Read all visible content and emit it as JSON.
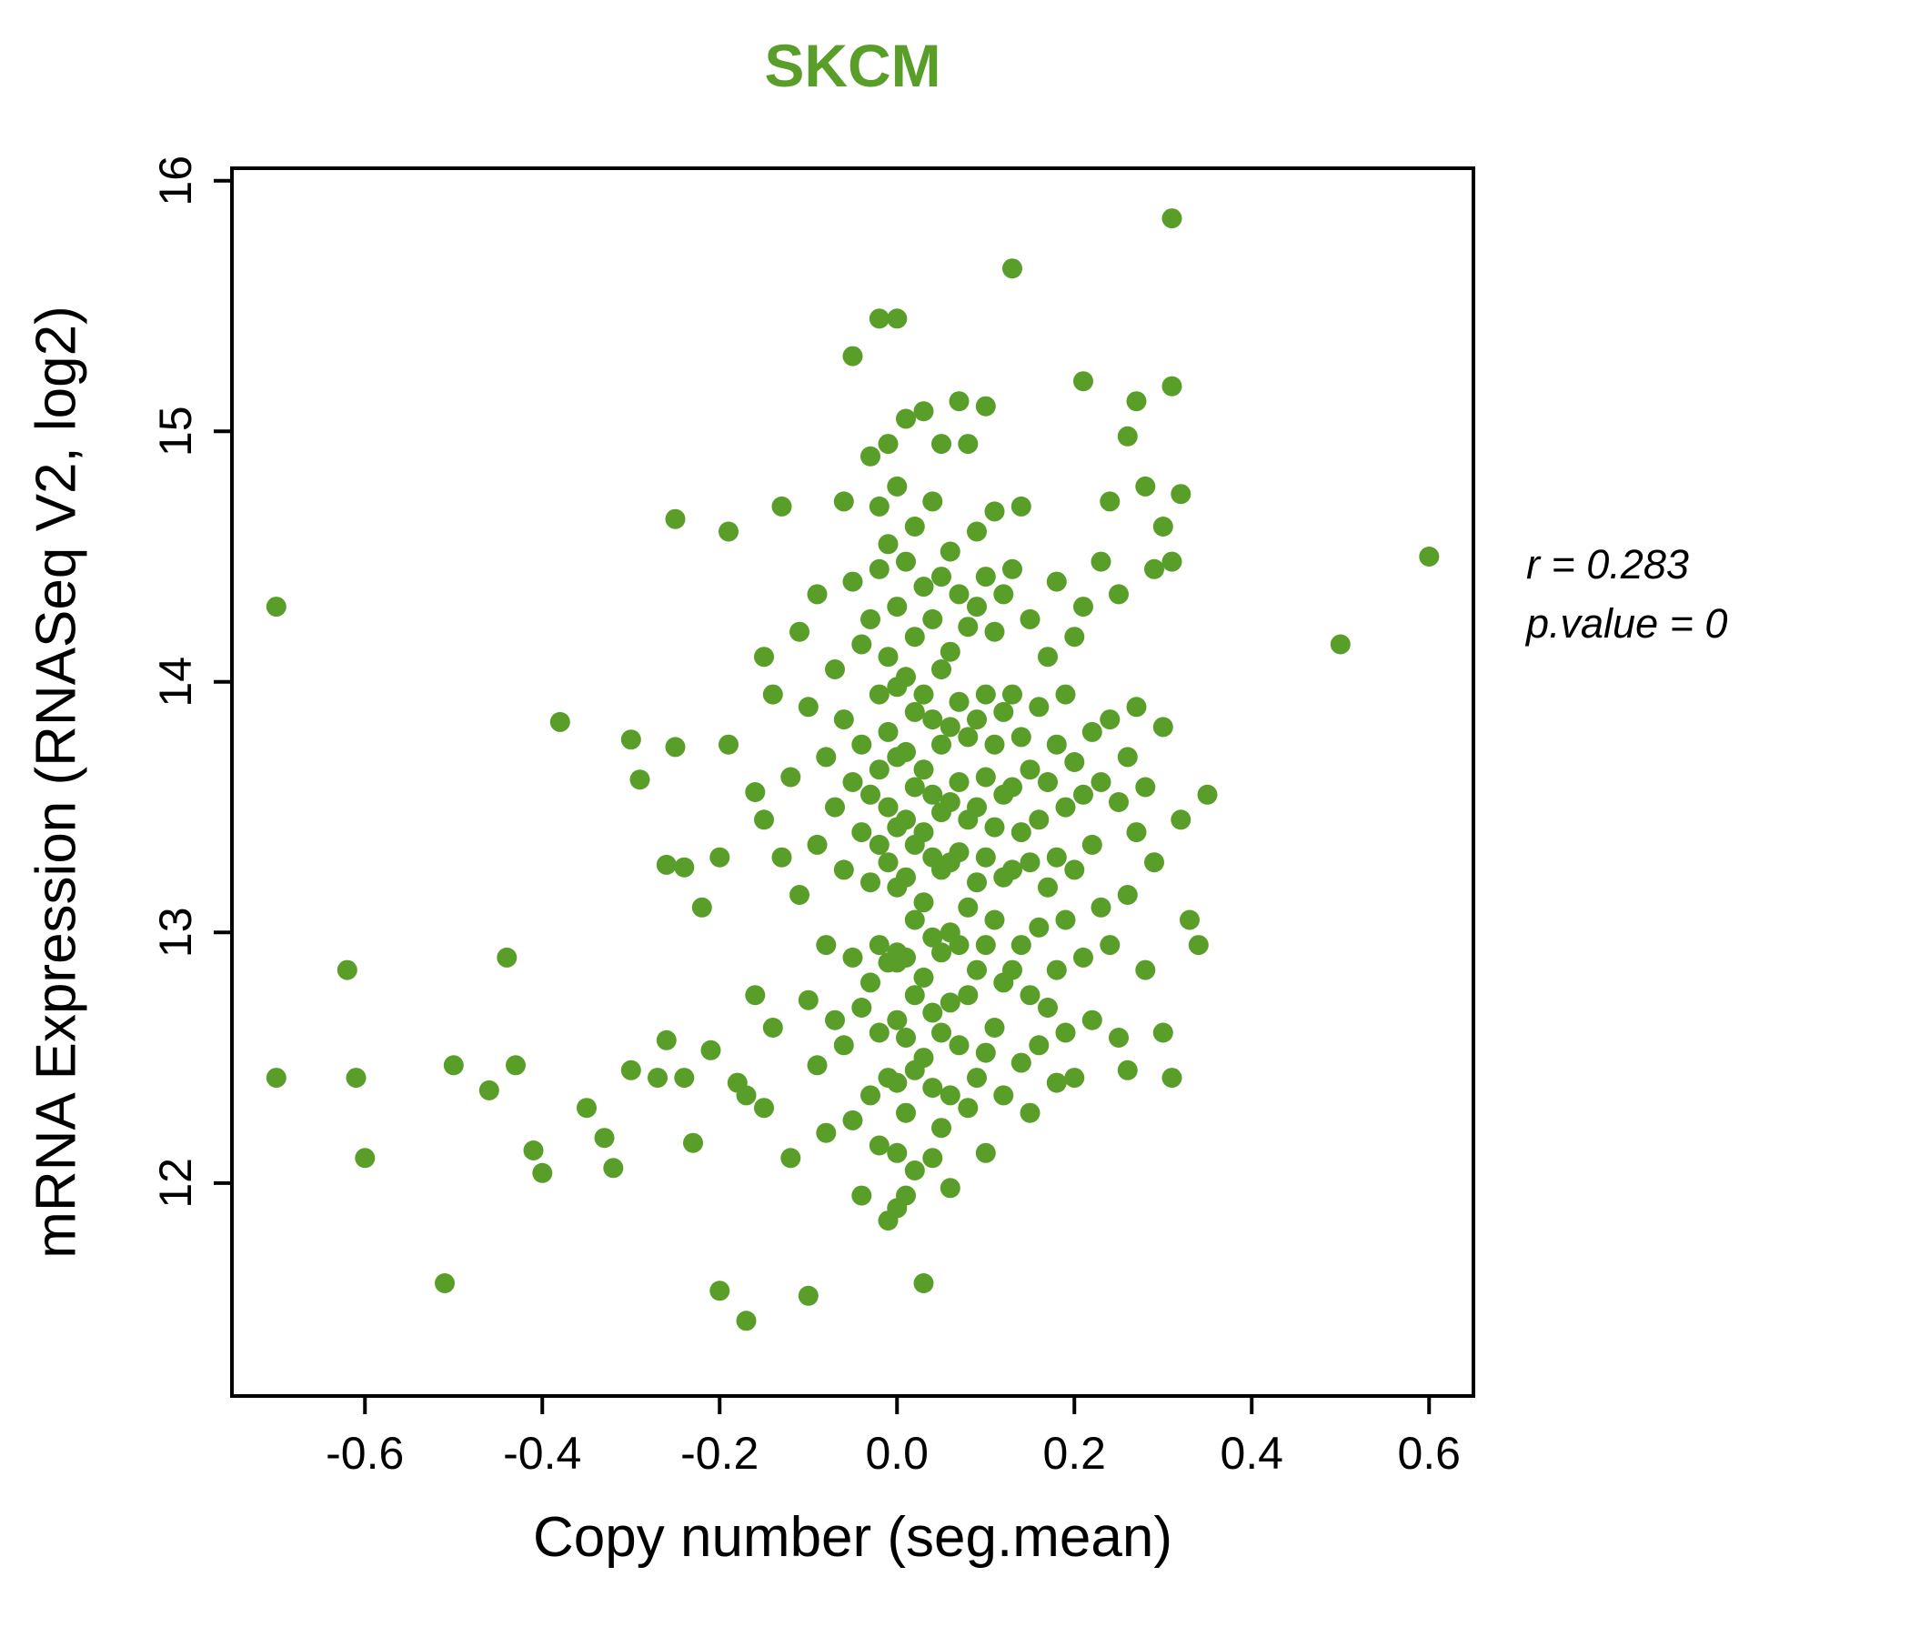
{
  "title": "SKCM",
  "title_color": "#5a9e2a",
  "point_color": "#5a9e2a",
  "axis_color": "#000000",
  "annotation": {
    "line1": "r = 0.283",
    "line2": "p.value = 0"
  },
  "chart_data": {
    "type": "scatter",
    "title": "SKCM",
    "xlabel": "Copy number (seg.mean)",
    "ylabel": "mRNA Expression (RNASeq V2, log2)",
    "xlim": [
      -0.75,
      0.65
    ],
    "ylim": [
      11.15,
      16.05
    ],
    "x_ticks": [
      -0.6,
      -0.4,
      -0.2,
      0.0,
      0.2,
      0.4,
      0.6
    ],
    "x_tick_labels": [
      "-0.6",
      "-0.4",
      "-0.2",
      "0.0",
      "0.2",
      "0.4",
      "0.6"
    ],
    "y_ticks": [
      12,
      13,
      14,
      15,
      16
    ],
    "y_tick_labels": [
      "12",
      "13",
      "14",
      "15",
      "16"
    ],
    "grid": false,
    "legend": "none",
    "annotations": [
      "r = 0.283",
      "p.value = 0"
    ],
    "points": [
      [
        -0.7,
        14.3
      ],
      [
        -0.7,
        12.42
      ],
      [
        -0.62,
        12.85
      ],
      [
        -0.61,
        12.42
      ],
      [
        -0.6,
        12.1
      ],
      [
        -0.51,
        11.6
      ],
      [
        -0.5,
        12.47
      ],
      [
        -0.46,
        12.37
      ],
      [
        -0.44,
        12.9
      ],
      [
        -0.43,
        12.47
      ],
      [
        -0.41,
        12.13
      ],
      [
        -0.4,
        12.04
      ],
      [
        -0.38,
        13.84
      ],
      [
        -0.35,
        12.3
      ],
      [
        -0.33,
        12.18
      ],
      [
        -0.32,
        12.06
      ],
      [
        -0.3,
        13.77
      ],
      [
        -0.3,
        12.45
      ],
      [
        -0.29,
        13.61
      ],
      [
        -0.27,
        12.42
      ],
      [
        -0.26,
        13.27
      ],
      [
        -0.26,
        12.57
      ],
      [
        -0.25,
        14.65
      ],
      [
        -0.25,
        13.74
      ],
      [
        -0.24,
        13.26
      ],
      [
        -0.24,
        12.42
      ],
      [
        -0.23,
        12.16
      ],
      [
        -0.22,
        13.1
      ],
      [
        -0.21,
        12.53
      ],
      [
        -0.2,
        11.57
      ],
      [
        -0.2,
        13.3
      ],
      [
        -0.19,
        14.6
      ],
      [
        -0.19,
        13.75
      ],
      [
        -0.18,
        12.4
      ],
      [
        -0.17,
        11.45
      ],
      [
        -0.17,
        12.35
      ],
      [
        -0.16,
        13.56
      ],
      [
        -0.16,
        12.75
      ],
      [
        -0.15,
        14.1
      ],
      [
        -0.15,
        13.45
      ],
      [
        -0.15,
        12.3
      ],
      [
        -0.14,
        13.95
      ],
      [
        -0.14,
        12.62
      ],
      [
        -0.13,
        14.7
      ],
      [
        -0.13,
        13.3
      ],
      [
        -0.12,
        12.1
      ],
      [
        -0.12,
        13.62
      ],
      [
        -0.11,
        14.2
      ],
      [
        -0.11,
        13.15
      ],
      [
        -0.1,
        11.55
      ],
      [
        -0.1,
        12.73
      ],
      [
        -0.1,
        13.9
      ],
      [
        -0.09,
        14.35
      ],
      [
        -0.09,
        13.35
      ],
      [
        -0.09,
        12.47
      ],
      [
        -0.08,
        13.7
      ],
      [
        -0.08,
        12.95
      ],
      [
        -0.08,
        12.2
      ],
      [
        -0.07,
        14.05
      ],
      [
        -0.07,
        13.5
      ],
      [
        -0.07,
        12.65
      ],
      [
        -0.06,
        14.72
      ],
      [
        -0.06,
        13.85
      ],
      [
        -0.06,
        13.25
      ],
      [
        -0.06,
        12.55
      ],
      [
        -0.05,
        15.3
      ],
      [
        -0.05,
        14.4
      ],
      [
        -0.05,
        13.6
      ],
      [
        -0.05,
        12.9
      ],
      [
        -0.05,
        12.25
      ],
      [
        -0.04,
        14.15
      ],
      [
        -0.04,
        13.75
      ],
      [
        -0.04,
        13.4
      ],
      [
        -0.04,
        12.7
      ],
      [
        -0.04,
        11.95
      ],
      [
        -0.03,
        14.9
      ],
      [
        -0.03,
        14.25
      ],
      [
        -0.03,
        13.55
      ],
      [
        -0.03,
        13.2
      ],
      [
        -0.03,
        12.8
      ],
      [
        -0.03,
        12.35
      ],
      [
        -0.02,
        15.45
      ],
      [
        -0.02,
        14.7
      ],
      [
        -0.02,
        14.45
      ],
      [
        -0.02,
        13.95
      ],
      [
        -0.02,
        13.65
      ],
      [
        -0.02,
        13.35
      ],
      [
        -0.02,
        12.95
      ],
      [
        -0.02,
        12.6
      ],
      [
        -0.02,
        12.15
      ],
      [
        -0.01,
        14.95
      ],
      [
        -0.01,
        14.55
      ],
      [
        -0.01,
        14.1
      ],
      [
        -0.01,
        13.8
      ],
      [
        -0.01,
        13.5
      ],
      [
        -0.01,
        13.28
      ],
      [
        -0.01,
        12.88
      ],
      [
        -0.01,
        12.42
      ],
      [
        -0.01,
        11.85
      ],
      [
        0.0,
        15.45
      ],
      [
        0.0,
        14.78
      ],
      [
        0.0,
        14.3
      ],
      [
        0.0,
        13.98
      ],
      [
        0.0,
        13.7
      ],
      [
        0.0,
        13.42
      ],
      [
        0.0,
        13.18
      ],
      [
        0.0,
        12.92
      ],
      [
        0.0,
        12.88
      ],
      [
        0.0,
        12.65
      ],
      [
        0.0,
        12.4
      ],
      [
        0.0,
        12.12
      ],
      [
        0.0,
        11.9
      ],
      [
        0.01,
        15.05
      ],
      [
        0.01,
        14.48
      ],
      [
        0.01,
        14.02
      ],
      [
        0.01,
        13.72
      ],
      [
        0.01,
        13.45
      ],
      [
        0.01,
        13.22
      ],
      [
        0.01,
        12.9
      ],
      [
        0.01,
        12.58
      ],
      [
        0.01,
        12.28
      ],
      [
        0.01,
        11.95
      ],
      [
        0.02,
        14.62
      ],
      [
        0.02,
        14.18
      ],
      [
        0.02,
        13.88
      ],
      [
        0.02,
        13.58
      ],
      [
        0.02,
        13.35
      ],
      [
        0.02,
        13.05
      ],
      [
        0.02,
        12.75
      ],
      [
        0.02,
        12.45
      ],
      [
        0.02,
        12.05
      ],
      [
        0.03,
        15.08
      ],
      [
        0.03,
        14.38
      ],
      [
        0.03,
        13.95
      ],
      [
        0.03,
        13.65
      ],
      [
        0.03,
        13.4
      ],
      [
        0.03,
        13.12
      ],
      [
        0.03,
        12.82
      ],
      [
        0.03,
        12.5
      ],
      [
        0.03,
        11.6
      ],
      [
        0.04,
        14.72
      ],
      [
        0.04,
        14.25
      ],
      [
        0.04,
        13.85
      ],
      [
        0.04,
        13.55
      ],
      [
        0.04,
        13.3
      ],
      [
        0.04,
        12.98
      ],
      [
        0.04,
        12.68
      ],
      [
        0.04,
        12.38
      ],
      [
        0.04,
        12.1
      ],
      [
        0.05,
        14.95
      ],
      [
        0.05,
        14.42
      ],
      [
        0.05,
        14.05
      ],
      [
        0.05,
        13.75
      ],
      [
        0.05,
        13.48
      ],
      [
        0.05,
        13.25
      ],
      [
        0.05,
        12.92
      ],
      [
        0.05,
        12.6
      ],
      [
        0.05,
        12.22
      ],
      [
        0.06,
        14.52
      ],
      [
        0.06,
        14.12
      ],
      [
        0.06,
        13.82
      ],
      [
        0.06,
        13.52
      ],
      [
        0.06,
        13.28
      ],
      [
        0.06,
        13.0
      ],
      [
        0.06,
        12.72
      ],
      [
        0.06,
        12.35
      ],
      [
        0.06,
        11.98
      ],
      [
        0.07,
        15.12
      ],
      [
        0.07,
        14.35
      ],
      [
        0.07,
        13.92
      ],
      [
        0.07,
        13.6
      ],
      [
        0.07,
        13.32
      ],
      [
        0.07,
        12.95
      ],
      [
        0.07,
        12.55
      ],
      [
        0.08,
        14.95
      ],
      [
        0.08,
        14.22
      ],
      [
        0.08,
        13.78
      ],
      [
        0.08,
        13.45
      ],
      [
        0.08,
        13.1
      ],
      [
        0.08,
        12.75
      ],
      [
        0.08,
        12.3
      ],
      [
        0.09,
        14.6
      ],
      [
        0.09,
        14.3
      ],
      [
        0.09,
        13.85
      ],
      [
        0.09,
        13.5
      ],
      [
        0.09,
        13.2
      ],
      [
        0.09,
        12.85
      ],
      [
        0.09,
        12.42
      ],
      [
        0.1,
        15.1
      ],
      [
        0.1,
        14.42
      ],
      [
        0.1,
        13.95
      ],
      [
        0.1,
        13.62
      ],
      [
        0.1,
        13.3
      ],
      [
        0.1,
        12.95
      ],
      [
        0.1,
        12.52
      ],
      [
        0.1,
        12.12
      ],
      [
        0.11,
        14.68
      ],
      [
        0.11,
        14.2
      ],
      [
        0.11,
        13.75
      ],
      [
        0.11,
        13.42
      ],
      [
        0.11,
        13.05
      ],
      [
        0.11,
        12.62
      ],
      [
        0.12,
        14.35
      ],
      [
        0.12,
        13.88
      ],
      [
        0.12,
        13.55
      ],
      [
        0.12,
        13.22
      ],
      [
        0.12,
        12.8
      ],
      [
        0.12,
        12.35
      ],
      [
        0.13,
        15.65
      ],
      [
        0.13,
        14.45
      ],
      [
        0.13,
        13.95
      ],
      [
        0.13,
        13.58
      ],
      [
        0.13,
        13.25
      ],
      [
        0.13,
        12.85
      ],
      [
        0.14,
        14.7
      ],
      [
        0.14,
        13.78
      ],
      [
        0.14,
        13.4
      ],
      [
        0.14,
        12.95
      ],
      [
        0.14,
        12.48
      ],
      [
        0.15,
        14.25
      ],
      [
        0.15,
        13.65
      ],
      [
        0.15,
        13.28
      ],
      [
        0.15,
        12.75
      ],
      [
        0.15,
        12.28
      ],
      [
        0.16,
        13.9
      ],
      [
        0.16,
        13.45
      ],
      [
        0.16,
        13.02
      ],
      [
        0.16,
        12.55
      ],
      [
        0.17,
        14.1
      ],
      [
        0.17,
        13.6
      ],
      [
        0.17,
        13.18
      ],
      [
        0.17,
        12.7
      ],
      [
        0.18,
        14.4
      ],
      [
        0.18,
        13.75
      ],
      [
        0.18,
        13.3
      ],
      [
        0.18,
        12.85
      ],
      [
        0.18,
        12.4
      ],
      [
        0.19,
        13.95
      ],
      [
        0.19,
        13.5
      ],
      [
        0.19,
        13.05
      ],
      [
        0.19,
        12.6
      ],
      [
        0.2,
        14.18
      ],
      [
        0.2,
        13.68
      ],
      [
        0.2,
        13.25
      ],
      [
        0.2,
        12.42
      ],
      [
        0.21,
        15.2
      ],
      [
        0.21,
        14.3
      ],
      [
        0.21,
        13.55
      ],
      [
        0.21,
        12.9
      ],
      [
        0.22,
        13.8
      ],
      [
        0.22,
        13.35
      ],
      [
        0.22,
        12.65
      ],
      [
        0.23,
        14.48
      ],
      [
        0.23,
        13.6
      ],
      [
        0.23,
        13.1
      ],
      [
        0.24,
        14.72
      ],
      [
        0.24,
        13.85
      ],
      [
        0.24,
        12.95
      ],
      [
        0.25,
        14.35
      ],
      [
        0.25,
        13.52
      ],
      [
        0.25,
        12.58
      ],
      [
        0.26,
        14.98
      ],
      [
        0.26,
        13.7
      ],
      [
        0.26,
        13.15
      ],
      [
        0.26,
        12.45
      ],
      [
        0.27,
        15.12
      ],
      [
        0.27,
        13.9
      ],
      [
        0.27,
        13.4
      ],
      [
        0.28,
        14.78
      ],
      [
        0.28,
        13.58
      ],
      [
        0.28,
        12.85
      ],
      [
        0.29,
        14.45
      ],
      [
        0.29,
        13.28
      ],
      [
        0.3,
        14.62
      ],
      [
        0.3,
        13.82
      ],
      [
        0.3,
        12.6
      ],
      [
        0.31,
        15.85
      ],
      [
        0.31,
        15.18
      ],
      [
        0.31,
        14.48
      ],
      [
        0.31,
        12.42
      ],
      [
        0.32,
        14.75
      ],
      [
        0.32,
        13.45
      ],
      [
        0.33,
        13.05
      ],
      [
        0.34,
        12.95
      ],
      [
        0.35,
        13.55
      ],
      [
        0.5,
        14.15
      ],
      [
        0.6,
        14.5
      ]
    ]
  }
}
